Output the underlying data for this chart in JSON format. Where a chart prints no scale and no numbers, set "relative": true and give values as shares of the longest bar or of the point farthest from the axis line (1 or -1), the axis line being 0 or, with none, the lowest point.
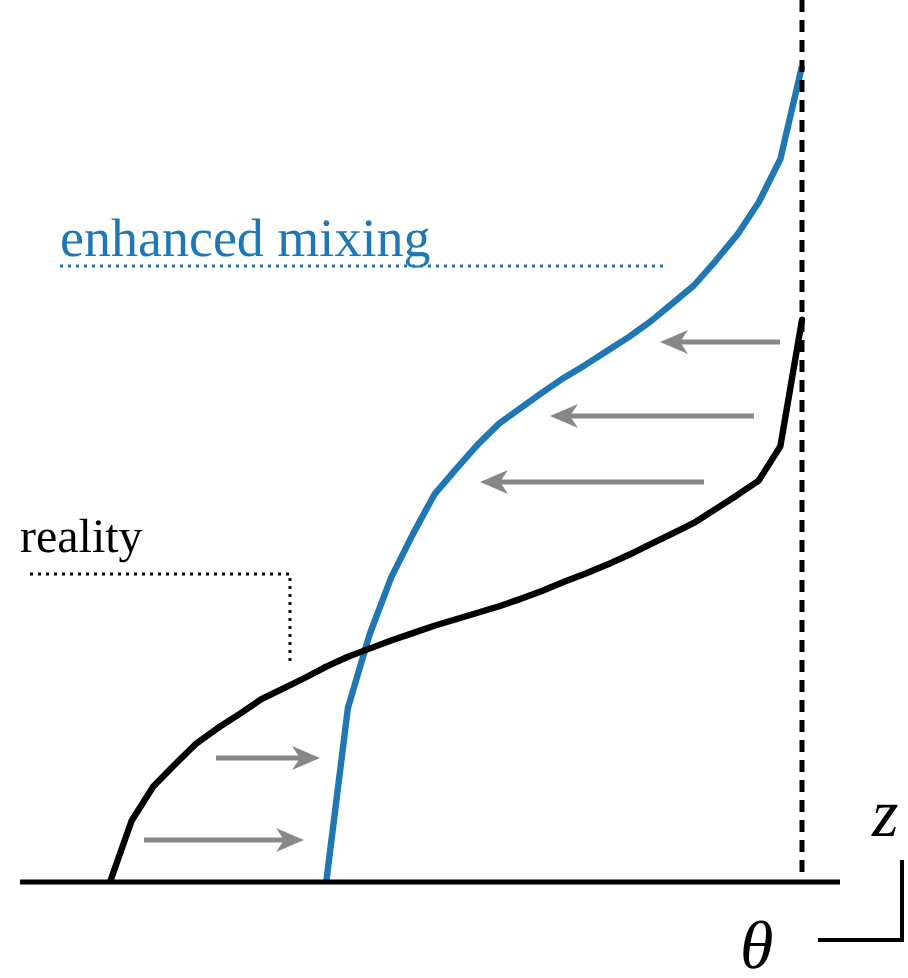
{
  "chart_data": {
    "type": "line",
    "relative": true,
    "xlabel": "θ",
    "ylabel": "z",
    "marker": "none",
    "line_style": "solid",
    "categories": [
      null,
      null,
      null,
      null,
      null,
      null,
      null,
      null,
      null,
      null,
      null,
      null,
      null,
      null,
      null,
      null,
      null,
      null,
      null,
      null,
      null,
      null,
      null,
      null,
      null,
      null,
      null,
      null,
      null,
      null,
      null,
      null,
      null
    ],
    "ref_lines": [
      {
        "axis": "x",
        "color": "#000000",
        "line_style": "dashed"
      }
    ],
    "series": [
      {
        "name": "reality",
        "color": "#000000",
        "values": [
          0,
          0.075,
          0.117,
          0.144,
          0.17,
          0.189,
          0.206,
          0.224,
          0.237,
          0.25,
          0.264,
          0.276,
          0.286,
          0.296,
          0.305,
          0.314,
          0.322,
          0.33,
          0.338,
          0.347,
          0.357,
          0.368,
          0.378,
          0.389,
          0.401,
          0.414,
          0.427,
          0.44,
          0.457,
          0.474,
          0.492,
          0.534,
          0.689
        ]
      },
      {
        "name": "enhanced mixing",
        "color": "#1f77b4",
        "values": [
          null,
          null,
          null,
          null,
          null,
          null,
          null,
          null,
          null,
          null,
          0,
          0.213,
          0.303,
          0.373,
          0.426,
          0.475,
          0.506,
          0.536,
          0.562,
          0.581,
          0.6,
          0.618,
          0.634,
          0.651,
          0.668,
          0.687,
          0.709,
          0.731,
          0.761,
          0.793,
          0.833,
          0.886,
          1
        ]
      }
    ]
  }
}
